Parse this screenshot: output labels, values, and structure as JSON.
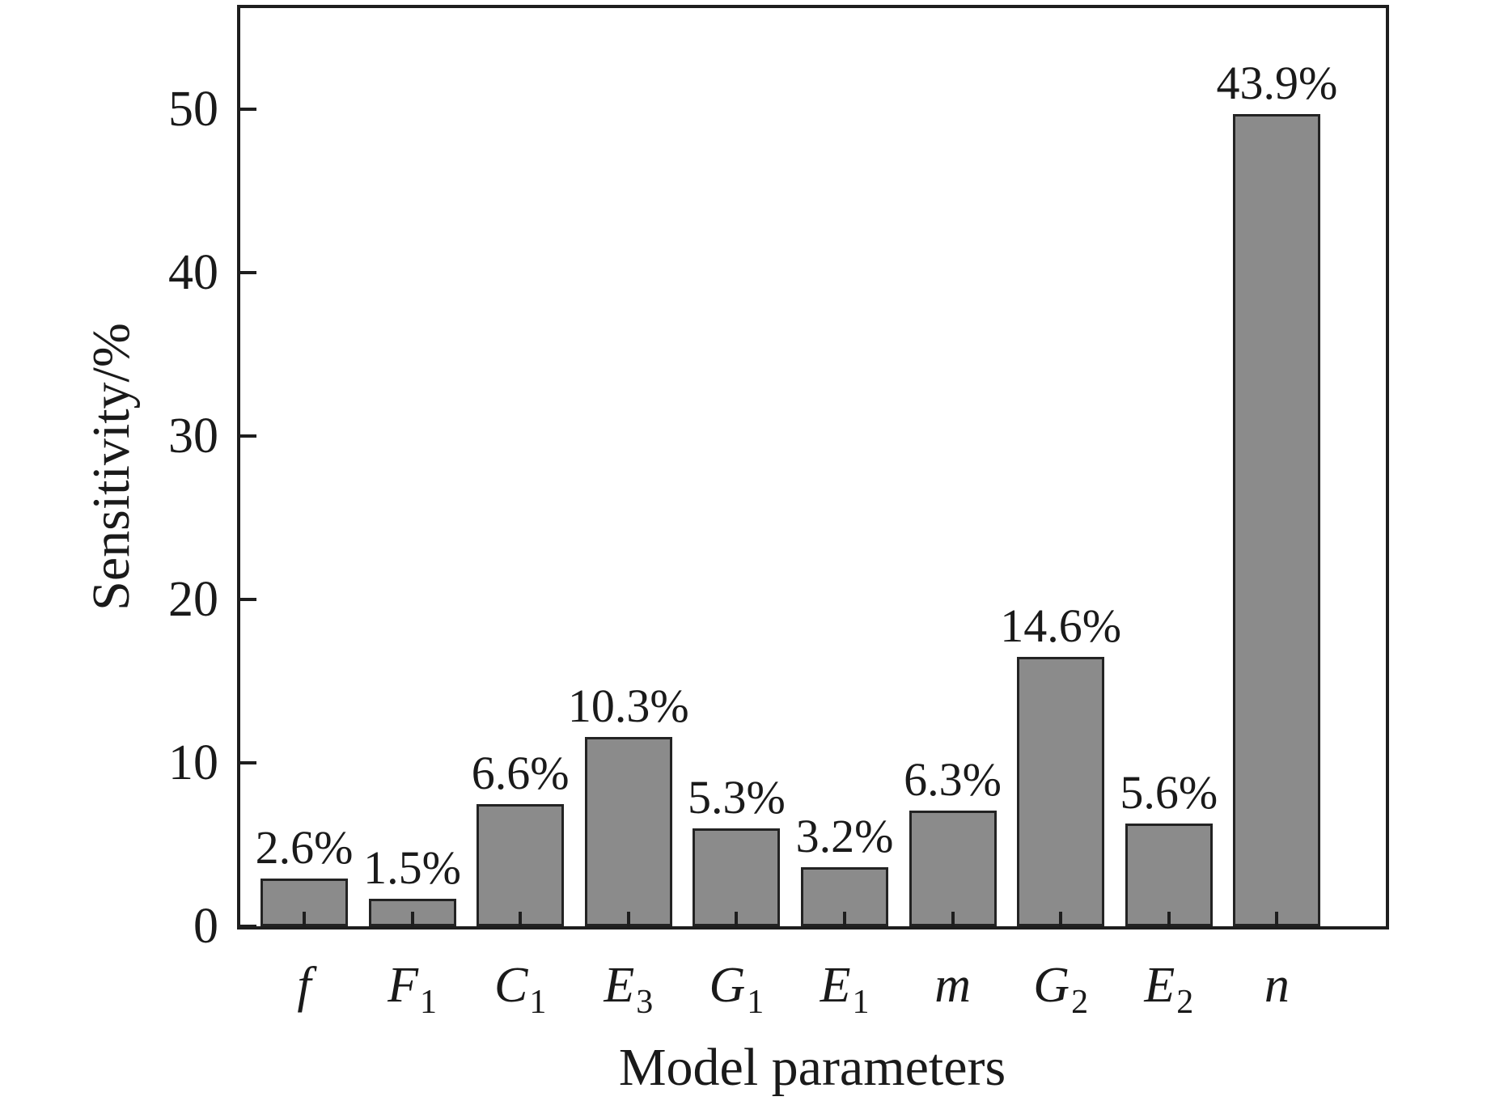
{
  "figure": {
    "background_color": "#ffffff",
    "text_color": "#1a1a1a"
  },
  "chart_data": {
    "type": "bar",
    "title": "",
    "xlabel": "Model parameters",
    "ylabel": "Sensitivity/%",
    "categories": [
      {
        "base": "f",
        "sub": ""
      },
      {
        "base": "F",
        "sub": "1"
      },
      {
        "base": "C",
        "sub": "1"
      },
      {
        "base": "E",
        "sub": "3"
      },
      {
        "base": "G",
        "sub": "1"
      },
      {
        "base": "E",
        "sub": "1"
      },
      {
        "base": "m",
        "sub": ""
      },
      {
        "base": "G",
        "sub": "2"
      },
      {
        "base": "E",
        "sub": "2"
      },
      {
        "base": "n",
        "sub": ""
      }
    ],
    "values": [
      2.6,
      1.5,
      6.6,
      10.3,
      5.3,
      3.2,
      6.3,
      14.6,
      5.6,
      43.9
    ],
    "value_labels": [
      "2.6%",
      "1.5%",
      "6.6%",
      "10.3%",
      "5.3%",
      "3.2%",
      "6.3%",
      "14.6%",
      "5.6%",
      "43.9%"
    ],
    "bar_top_axis_units": [
      2.9,
      1.7,
      7.5,
      11.6,
      6.0,
      3.6,
      7.1,
      16.5,
      6.3,
      49.7
    ],
    "y_ticks": [
      0,
      10,
      20,
      30,
      40,
      50
    ],
    "ylim": [
      0,
      56.3
    ],
    "grid": false,
    "legend": null,
    "bar_fill_color": "#8b8b8b",
    "bar_border_color": "#232323",
    "axis_color": "#1e1e1e"
  }
}
